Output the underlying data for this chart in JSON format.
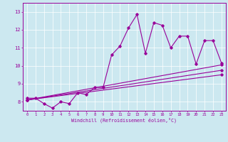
{
  "title": "",
  "xlabel": "Windchill (Refroidissement éolien,°C)",
  "ylabel": "",
  "background_color": "#cce8f0",
  "line_color": "#990099",
  "xlim": [
    -0.5,
    23.5
  ],
  "ylim": [
    7.5,
    13.5
  ],
  "yticks": [
    8,
    9,
    10,
    11,
    12,
    13
  ],
  "xticks": [
    0,
    1,
    2,
    3,
    4,
    5,
    6,
    7,
    8,
    9,
    10,
    11,
    12,
    13,
    14,
    15,
    16,
    17,
    18,
    19,
    20,
    21,
    22,
    23
  ],
  "series1_x": [
    0,
    1,
    2,
    3,
    4,
    5,
    6,
    7,
    8,
    9,
    10,
    11,
    12,
    13,
    14,
    15,
    16,
    17,
    18,
    19,
    20,
    21,
    22,
    23
  ],
  "series1_y": [
    8.2,
    8.2,
    7.9,
    7.65,
    8.0,
    7.9,
    8.5,
    8.4,
    8.8,
    8.8,
    10.6,
    11.1,
    12.1,
    12.85,
    10.7,
    12.4,
    12.25,
    11.0,
    11.65,
    11.65,
    10.1,
    11.4,
    11.4,
    10.15
  ],
  "series2_x": [
    0,
    23
  ],
  "series2_y": [
    8.1,
    10.05
  ],
  "series3_x": [
    0,
    23
  ],
  "series3_y": [
    8.1,
    9.75
  ],
  "series4_x": [
    0,
    23
  ],
  "series4_y": [
    8.1,
    9.5
  ]
}
